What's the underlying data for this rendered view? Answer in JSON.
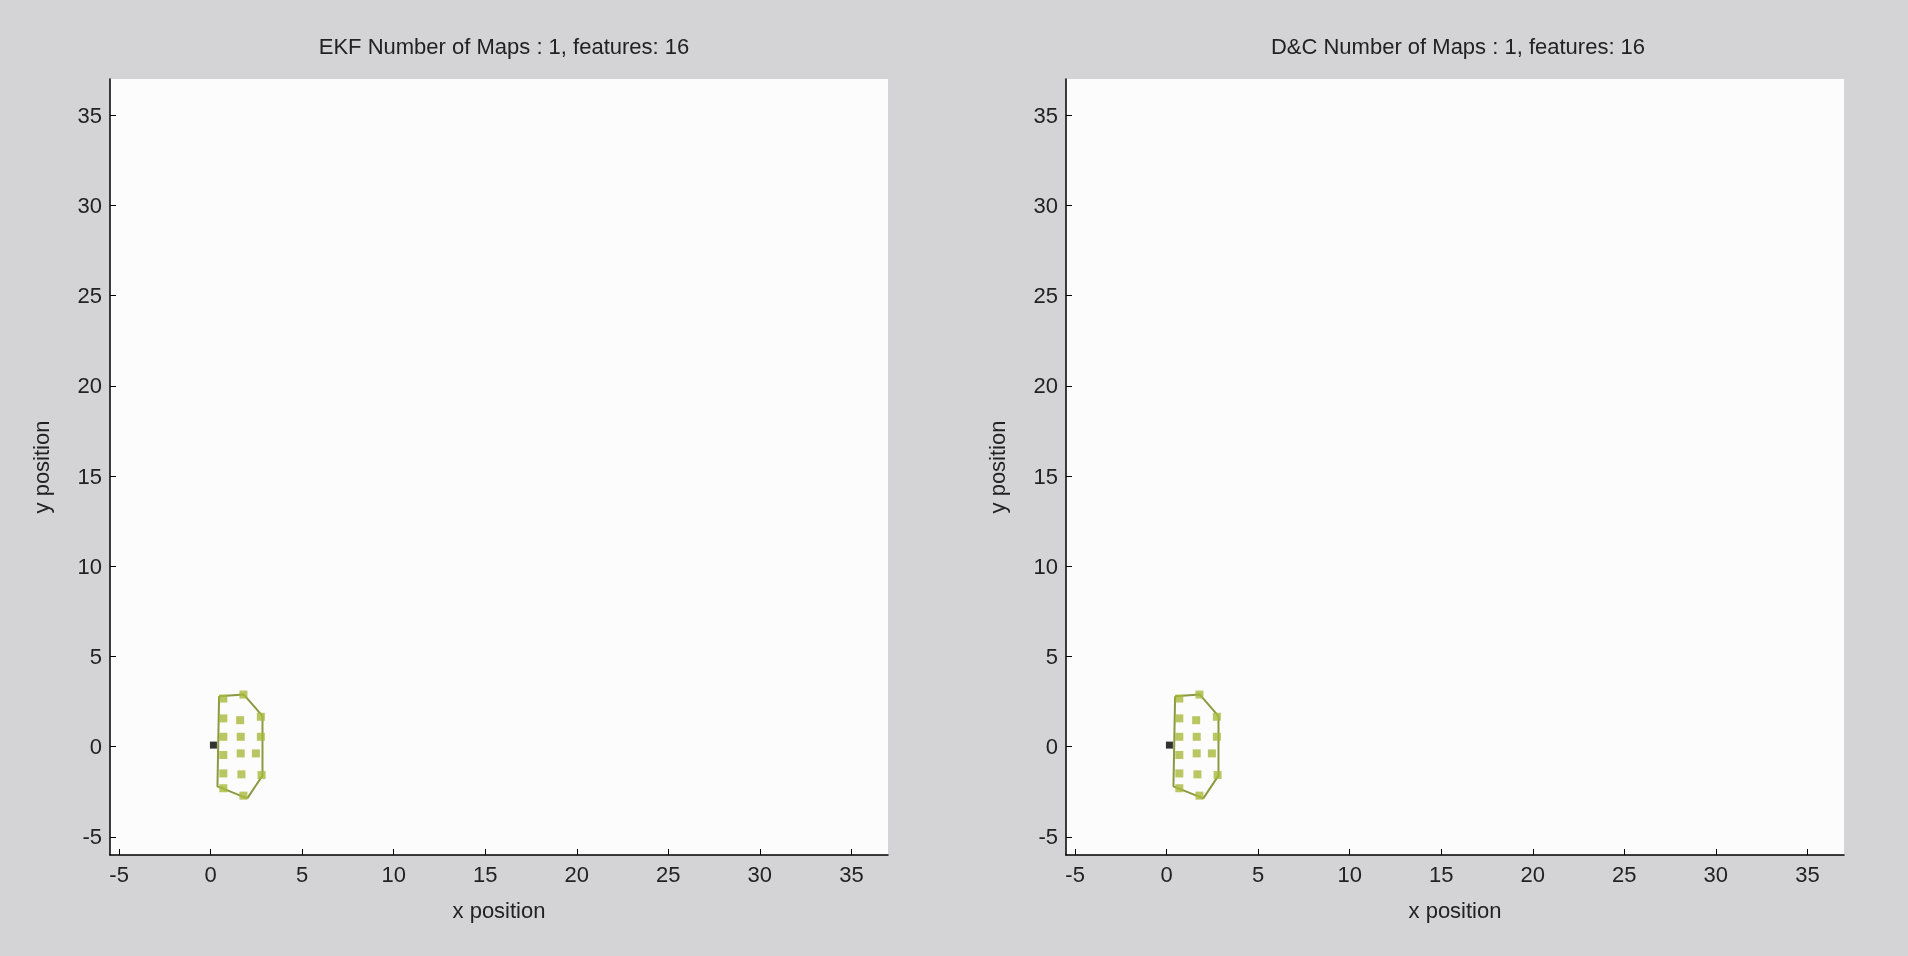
{
  "chart_data": [
    {
      "type": "scatter",
      "title": "EKF Number of Maps : 1, features: 16",
      "xlabel": "x position",
      "ylabel": "y position",
      "xlim": [
        -5.5,
        37
      ],
      "ylim": [
        -6,
        37
      ],
      "xticks": [
        -5,
        0,
        5,
        10,
        15,
        20,
        25,
        30,
        35
      ],
      "yticks": [
        -5,
        0,
        5,
        10,
        15,
        20,
        25,
        30,
        35
      ],
      "series": [
        {
          "type": "line",
          "marker": "none",
          "color": "#8a9a40",
          "x": [
            0.46,
            1.8,
            2.83,
            2.83,
            2.0
          ],
          "values": [
            2.8,
            2.9,
            1.7,
            -1.6,
            -2.86
          ]
        },
        {
          "type": "line",
          "marker": "none",
          "color": "#8a9a40",
          "x": [
            2.0,
            0.37,
            0.46
          ],
          "values": [
            -2.86,
            -2.2,
            2.8
          ]
        },
        {
          "marker": "square",
          "color": "#a8b83a",
          "x": [
            0.69,
            1.79,
            0.69,
            1.61,
            2.74,
            0.69,
            1.64,
            2.74,
            0.69,
            1.64,
            2.47,
            0.69,
            1.68,
            2.78,
            0.69,
            1.79
          ],
          "values": [
            2.67,
            2.89,
            1.57,
            1.47,
            1.66,
            0.55,
            0.55,
            0.55,
            -0.46,
            -0.37,
            -0.37,
            -1.48,
            -1.53,
            -1.57,
            -2.3,
            -2.71
          ]
        },
        {
          "marker": "square",
          "color": "#000000",
          "x": [
            0.15
          ],
          "values": [
            0.09
          ]
        }
      ]
    },
    {
      "type": "scatter",
      "title": "D&C Number of Maps : 1, features: 16",
      "xlabel": "x position",
      "ylabel": "y position",
      "xlim": [
        -5.5,
        37
      ],
      "ylim": [
        -6,
        37
      ],
      "xticks": [
        -5,
        0,
        5,
        10,
        15,
        20,
        25,
        30,
        35
      ],
      "yticks": [
        -5,
        0,
        5,
        10,
        15,
        20,
        25,
        30,
        35
      ],
      "series": [
        {
          "type": "line",
          "marker": "none",
          "color": "#8a9a40",
          "x": [
            0.46,
            1.8,
            2.83,
            2.83,
            2.0
          ],
          "values": [
            2.8,
            2.9,
            1.7,
            -1.6,
            -2.86
          ]
        },
        {
          "type": "line",
          "marker": "none",
          "color": "#8a9a40",
          "x": [
            2.0,
            0.37,
            0.46
          ],
          "values": [
            -2.86,
            -2.2,
            2.8
          ]
        },
        {
          "marker": "square",
          "color": "#a8b83a",
          "x": [
            0.69,
            1.79,
            0.69,
            1.61,
            2.74,
            0.69,
            1.64,
            2.74,
            0.69,
            1.64,
            2.47,
            0.69,
            1.68,
            2.78,
            0.69,
            1.79
          ],
          "values": [
            2.67,
            2.89,
            1.57,
            1.47,
            1.66,
            0.55,
            0.55,
            0.55,
            -0.46,
            -0.37,
            -0.37,
            -1.48,
            -1.53,
            -1.57,
            -2.3,
            -2.71
          ]
        },
        {
          "marker": "square",
          "color": "#000000",
          "x": [
            0.15
          ],
          "values": [
            0.09
          ]
        }
      ]
    }
  ]
}
